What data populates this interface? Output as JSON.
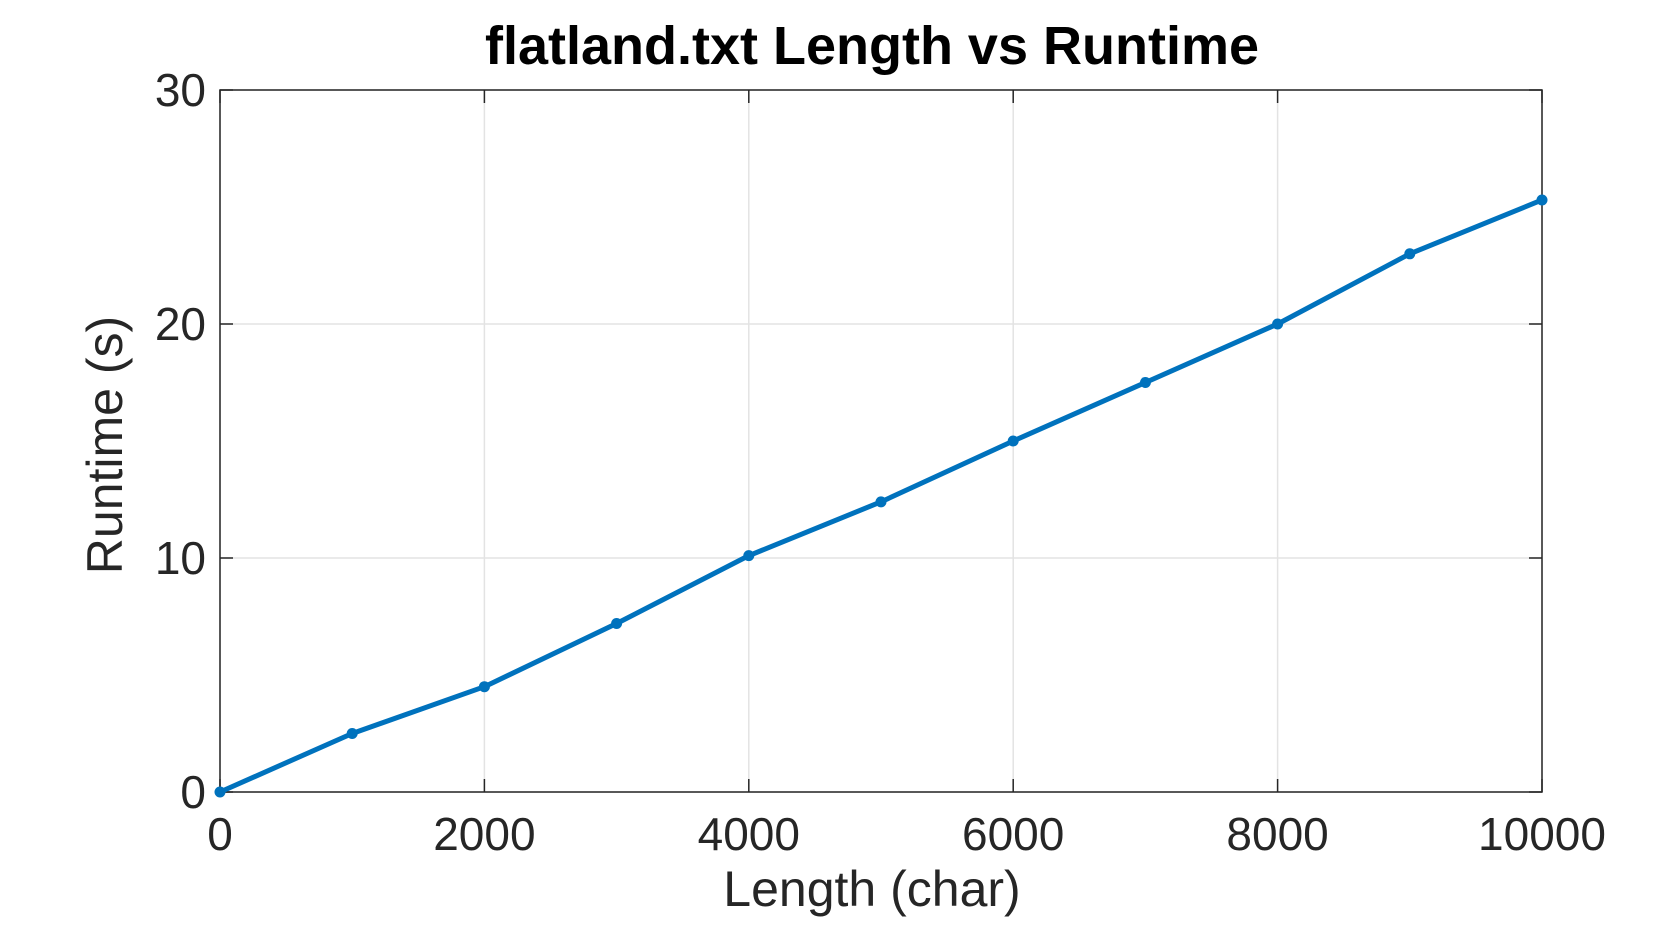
{
  "chart_data": {
    "type": "line",
    "title": "flatland.txt Length vs Runtime",
    "xlabel": "Length (char)",
    "ylabel": "Runtime (s)",
    "xlim": [
      0,
      10000
    ],
    "ylim": [
      0,
      30
    ],
    "xticks": [
      0,
      2000,
      4000,
      6000,
      8000,
      10000
    ],
    "yticks": [
      0,
      10,
      20,
      30
    ],
    "grid": true,
    "series": [
      {
        "color": "#0072bd",
        "x": [
          0,
          1000,
          2000,
          3000,
          4000,
          5000,
          6000,
          7000,
          8000,
          9000,
          10000
        ],
        "y": [
          0,
          2.5,
          4.5,
          7.2,
          10.1,
          12.4,
          15.0,
          17.5,
          20.0,
          23.0,
          25.3
        ]
      }
    ]
  }
}
